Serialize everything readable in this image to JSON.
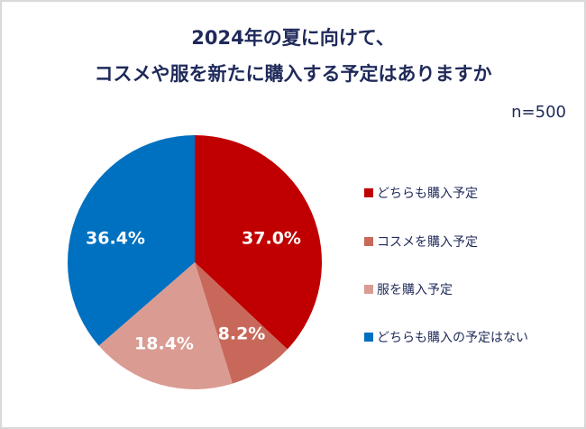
{
  "title": {
    "line1": "2024年の夏に向けて、",
    "line2": "コスメや服を新たに購入する予定はありますか"
  },
  "sample": "n=500",
  "legend": [
    {
      "label": "どちらも購入予定",
      "color": "#c00000"
    },
    {
      "label": "コスメを購入予定",
      "color": "#c8685a"
    },
    {
      "label": "服を購入予定",
      "color": "#da9b92"
    },
    {
      "label": "どちらも購入の予定はない",
      "color": "#0070c0"
    }
  ],
  "labels": [
    "37.0%",
    "8.2%",
    "18.4%",
    "36.4%"
  ],
  "chart_data": {
    "type": "pie",
    "title": "2024年の夏に向けて、コスメや服を新たに購入する予定はありますか",
    "subtitle": "n=500",
    "categories": [
      "どちらも購入予定",
      "コスメを購入予定",
      "服を購入予定",
      "どちらも購入の予定はない"
    ],
    "values": [
      37.0,
      8.2,
      18.4,
      36.4
    ],
    "unit": "%",
    "colors": [
      "#c00000",
      "#c8685a",
      "#da9b92",
      "#0070c0"
    ],
    "start_angle": "12 o'clock, clockwise",
    "legend_position": "right"
  }
}
